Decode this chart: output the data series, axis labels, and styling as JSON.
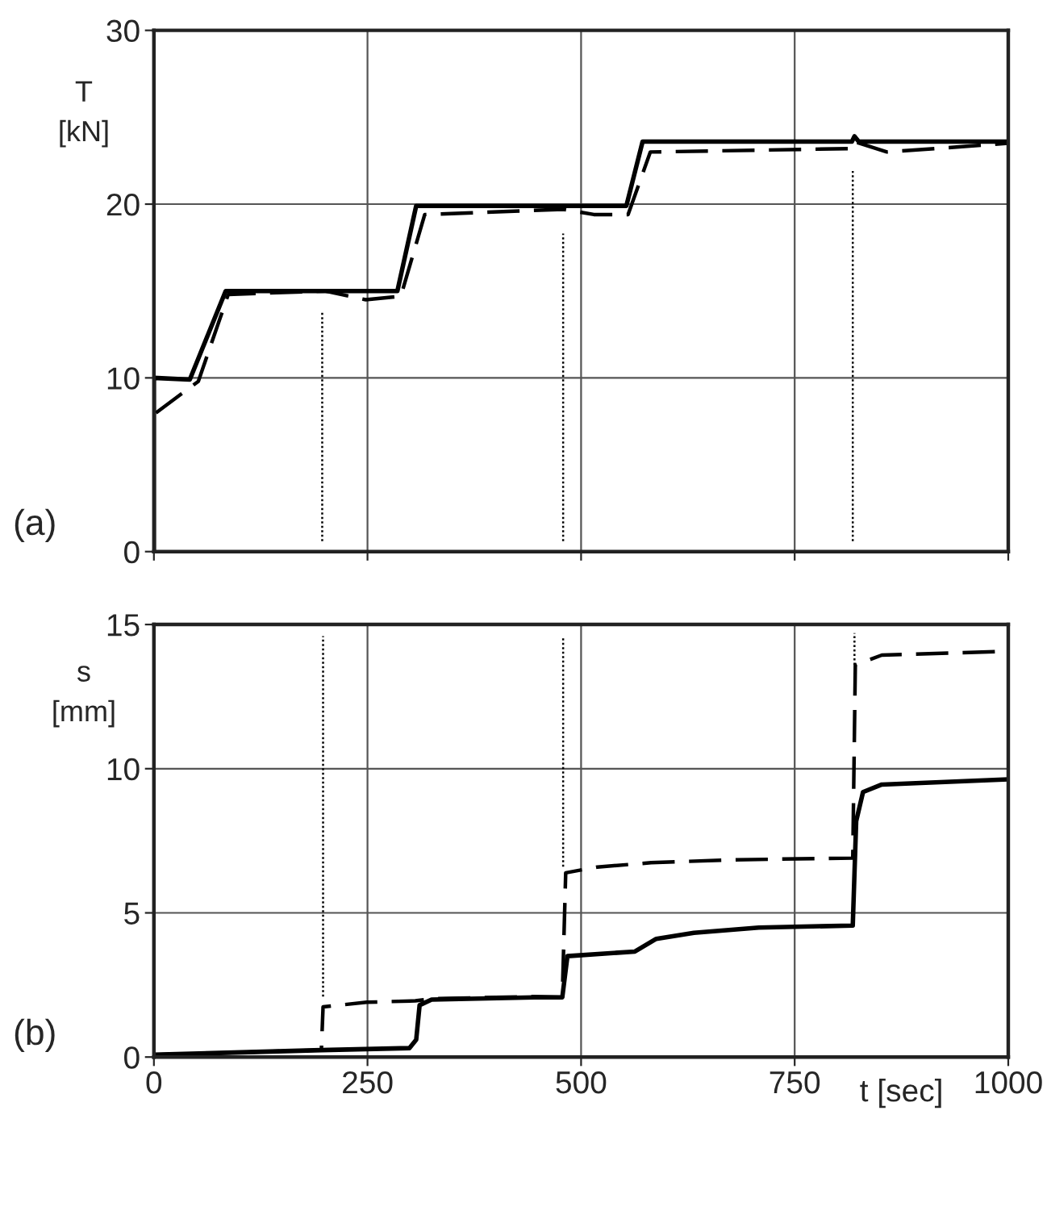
{
  "chart_data": [
    {
      "type": "line",
      "ylabel": "T\n[kN]",
      "annotations": [
        "(a)"
      ],
      "xlim": [
        0,
        1000
      ],
      "ylim": [
        0,
        30
      ],
      "xticks": [
        0,
        250,
        500,
        750,
        1000
      ],
      "yticks": [
        0,
        10,
        20,
        30
      ],
      "tick_labels": "y",
      "grid": true,
      "series": [
        {
          "color": "#000000",
          "line_style": "solid",
          "x": [
            0,
            0,
            42,
            84,
            285,
            307,
            553,
            572,
            817,
            820,
            825,
            1000
          ],
          "values": [
            0,
            10,
            9.9,
            15.0,
            15.0,
            19.9,
            19.9,
            23.6,
            23.6,
            23.9,
            23.6,
            23.6
          ]
        },
        {
          "color": "#000000",
          "line_style": "dashed",
          "x": [
            0,
            0,
            52,
            87,
            200,
            248,
            289,
            317,
            479,
            515,
            555,
            581,
            817,
            820,
            858,
            1000
          ],
          "values": [
            0,
            7.9,
            9.8,
            14.8,
            15.0,
            14.5,
            14.7,
            19.4,
            19.7,
            19.4,
            19.4,
            23.0,
            23.2,
            23.6,
            23.0,
            23.5
          ]
        },
        {
          "color": "#000000",
          "line_style": "dotted",
          "x": [
            197,
            197
          ],
          "values": [
            0.6,
            13.8
          ]
        },
        {
          "color": "#000000",
          "line_style": "dotted",
          "x": [
            479,
            479
          ],
          "values": [
            0.6,
            18.3
          ]
        },
        {
          "color": "#000000",
          "line_style": "dotted",
          "x": [
            818,
            818
          ],
          "values": [
            0.6,
            21.9
          ]
        }
      ]
    },
    {
      "type": "line",
      "ylabel": "s\n[mm]",
      "xlabel": "t [sec]",
      "annotations": [
        "(b)"
      ],
      "xlim": [
        0,
        1000
      ],
      "ylim": [
        0,
        15
      ],
      "xticks": [
        0,
        250,
        500,
        750,
        1000
      ],
      "yticks": [
        0,
        5,
        10,
        15
      ],
      "grid": true,
      "series": [
        {
          "color": "#000000",
          "line_style": "solid",
          "x": [
            0,
            196,
            299,
            307,
            311,
            325,
            445,
            478,
            484,
            563,
            588,
            632,
            708,
            818,
            822,
            830,
            852,
            1000
          ],
          "values": [
            0.08,
            0.24,
            0.31,
            0.6,
            1.8,
            1.99,
            2.07,
            2.07,
            3.5,
            3.66,
            4.1,
            4.31,
            4.49,
            4.56,
            8.18,
            9.19,
            9.45,
            9.63
          ]
        },
        {
          "color": "#000000",
          "line_style": "dashed",
          "x": [
            0,
            196,
            198,
            249,
            306,
            325,
            445,
            478,
            482,
            519,
            582,
            676,
            818,
            821,
            852,
            1000
          ],
          "values": [
            0.08,
            0.24,
            1.74,
            1.9,
            1.95,
            2.02,
            2.1,
            2.07,
            6.39,
            6.59,
            6.74,
            6.84,
            6.9,
            13.6,
            13.94,
            14.07
          ]
        },
        {
          "color": "#000000",
          "line_style": "dotted",
          "x": [
            198,
            198
          ],
          "values": [
            2.1,
            14.6
          ]
        },
        {
          "color": "#000000",
          "line_style": "dotted",
          "x": [
            479,
            479
          ],
          "values": [
            6.6,
            14.6
          ]
        },
        {
          "color": "#000000",
          "line_style": "dotted",
          "x": [
            820,
            820
          ],
          "values": [
            13.6,
            14.7
          ]
        }
      ]
    }
  ]
}
